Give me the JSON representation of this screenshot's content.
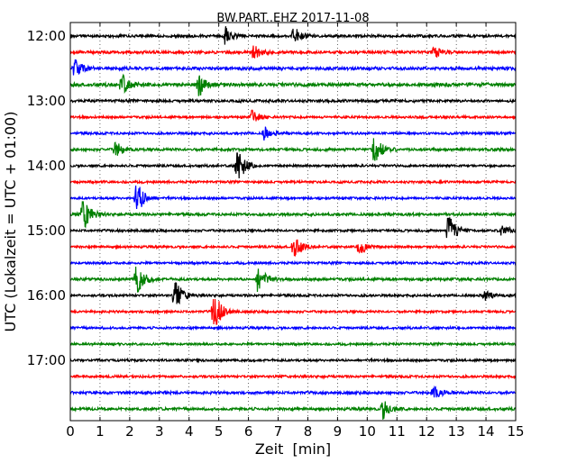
{
  "chart_data": {
    "type": "line",
    "title": "BW.PART..EHZ 2017-11-08",
    "xlabel": "Zeit  [min]",
    "ylabel": "UTC (Lokalzeit = UTC + 01:00)",
    "xlim": [
      0,
      15
    ],
    "x_ticks": [
      "0",
      "1",
      "2",
      "3",
      "4",
      "5",
      "6",
      "7",
      "8",
      "9",
      "10",
      "11",
      "12",
      "13",
      "14",
      "15"
    ],
    "y_tick_labels": [
      "12:00",
      "13:00",
      "14:00",
      "15:00",
      "16:00",
      "17:00"
    ],
    "grid": "vertical dotted",
    "colors": [
      "#000000",
      "#ff0000",
      "#0000ff",
      "#008000"
    ],
    "traces": [
      {
        "start": "12:00",
        "noise": 0.35,
        "events": [
          [
            5.2,
            0.7
          ],
          [
            7.5,
            0.8
          ]
        ]
      },
      {
        "start": "12:15",
        "noise": 0.35,
        "events": [
          [
            6.1,
            0.7
          ],
          [
            12.2,
            0.6
          ]
        ]
      },
      {
        "start": "12:30",
        "noise": 0.4,
        "events": [
          [
            0.1,
            0.9
          ]
        ]
      },
      {
        "start": "12:45",
        "noise": 0.45,
        "events": [
          [
            1.7,
            0.9
          ],
          [
            4.3,
            1.0
          ]
        ]
      },
      {
        "start": "13:00",
        "noise": 0.35,
        "events": []
      },
      {
        "start": "13:15",
        "noise": 0.3,
        "events": [
          [
            6.1,
            0.5
          ]
        ]
      },
      {
        "start": "13:30",
        "noise": 0.3,
        "events": [
          [
            6.5,
            0.6
          ]
        ]
      },
      {
        "start": "13:45",
        "noise": 0.35,
        "events": [
          [
            1.5,
            0.7
          ],
          [
            10.2,
            1.4
          ]
        ]
      },
      {
        "start": "14:00",
        "noise": 0.3,
        "events": [
          [
            5.6,
            1.6
          ]
        ]
      },
      {
        "start": "14:15",
        "noise": 0.3,
        "events": []
      },
      {
        "start": "14:30",
        "noise": 0.3,
        "events": [
          [
            2.2,
            1.6
          ]
        ]
      },
      {
        "start": "14:45",
        "noise": 0.35,
        "events": [
          [
            0.4,
            1.6
          ]
        ]
      },
      {
        "start": "15:00",
        "noise": 0.3,
        "events": [
          [
            12.7,
            1.7
          ],
          [
            14.5,
            0.6
          ]
        ]
      },
      {
        "start": "15:15",
        "noise": 0.3,
        "events": [
          [
            7.5,
            1.0
          ],
          [
            9.7,
            0.9
          ]
        ]
      },
      {
        "start": "15:30",
        "noise": 0.3,
        "events": []
      },
      {
        "start": "15:45",
        "noise": 0.35,
        "events": [
          [
            2.2,
            1.5
          ],
          [
            6.3,
            1.2
          ]
        ]
      },
      {
        "start": "16:00",
        "noise": 0.3,
        "events": [
          [
            3.5,
            1.4
          ],
          [
            13.9,
            0.5
          ]
        ]
      },
      {
        "start": "16:15",
        "noise": 0.3,
        "events": [
          [
            4.8,
            2.0
          ]
        ]
      },
      {
        "start": "16:30",
        "noise": 0.3,
        "events": []
      },
      {
        "start": "16:45",
        "noise": 0.3,
        "events": []
      },
      {
        "start": "17:00",
        "noise": 0.3,
        "events": []
      },
      {
        "start": "17:15",
        "noise": 0.3,
        "events": []
      },
      {
        "start": "17:30",
        "noise": 0.35,
        "events": [
          [
            12.2,
            0.6
          ]
        ]
      },
      {
        "start": "17:45",
        "noise": 0.35,
        "events": [
          [
            10.5,
            0.8
          ]
        ]
      }
    ]
  }
}
